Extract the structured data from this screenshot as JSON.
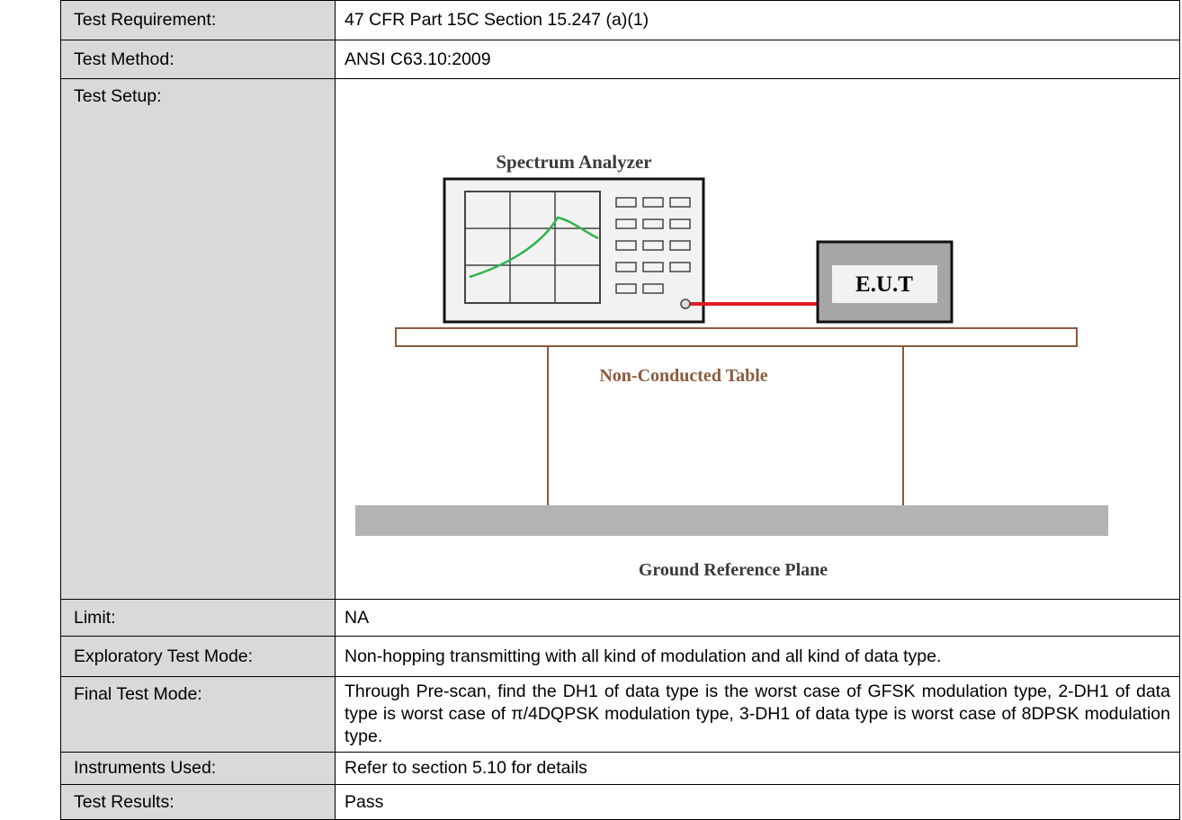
{
  "table": {
    "rows": [
      {
        "label": "Test Requirement:",
        "value": "47 CFR Part 15C Section 15.247 (a)(1)"
      },
      {
        "label": "Test Method:",
        "value": "ANSI C63.10:2009"
      },
      {
        "label": "Test Setup:",
        "diagram": {
          "analyzer": "Spectrum Analyzer",
          "eut": "E.U.T",
          "table": "Non-Conducted Table",
          "ground": "Ground Reference Plane"
        }
      },
      {
        "label": "Limit:",
        "value": "NA"
      },
      {
        "label": "Exploratory Test Mode:",
        "value": "Non-hopping transmitting with all kind of modulation and all kind of data type."
      },
      {
        "label": "Final Test Mode:",
        "value": "Through Pre-scan, find the DH1 of data type is the worst case of GFSK modulation type, 2-DH1 of data type is worst case of π/4DQPSK modulation type, 3-DH1 of data type is worst case of 8DPSK modulation type."
      },
      {
        "label": "Instruments Used:",
        "value": "Refer to section 5.10 for details"
      },
      {
        "label": "Test Results:",
        "value": "Pass"
      }
    ]
  }
}
